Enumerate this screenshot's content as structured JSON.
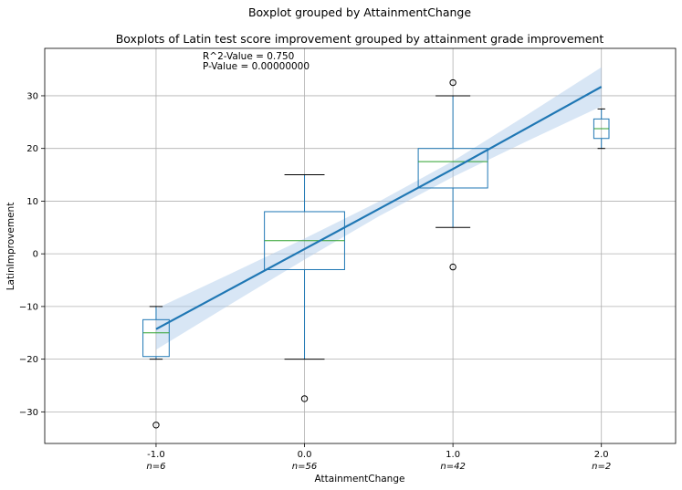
{
  "chart_data": {
    "type": "box",
    "suptitle": "Boxplot grouped by AttainmentChange",
    "title": "Boxplots of Latin test score improvement grouped by attainment grade improvement",
    "xlabel": "AttainmentChange",
    "ylabel": "LatinImprovement",
    "ylim": [
      -36,
      39
    ],
    "yticks": [
      -30,
      -20,
      -10,
      0,
      10,
      20,
      30
    ],
    "xlim": [
      -1.75,
      2.5
    ],
    "grid": true,
    "annotation": {
      "r2": "R^2-Value = 0.750",
      "p": "P-Value = 0.00000000"
    },
    "groups": [
      {
        "x": -1.0,
        "label": "-1.0",
        "n_label": "n=6",
        "q1": -19.5,
        "median": -15,
        "q3": -12.5,
        "whisker_low": -20,
        "whisker_high": -10,
        "outliers": [
          -32.5
        ]
      },
      {
        "x": 0.0,
        "label": "0.0",
        "n_label": "n=56",
        "q1": -3,
        "median": 2.5,
        "q3": 8,
        "whisker_low": -20,
        "whisker_high": 15,
        "outliers": [
          -27.5
        ]
      },
      {
        "x": 1.0,
        "label": "1.0",
        "n_label": "n=42",
        "q1": 12.5,
        "median": 17.5,
        "q3": 20,
        "whisker_low": 5,
        "whisker_high": 30,
        "outliers": [
          32.5,
          -2.5
        ]
      },
      {
        "x": 2.0,
        "label": "2.0",
        "n_label": "n=2",
        "q1": 21.9,
        "median": 23.75,
        "q3": 25.6,
        "whisker_low": 20,
        "whisker_high": 27.5,
        "outliers": []
      }
    ],
    "regression": {
      "x": [
        -1.0,
        -0.5,
        0.0,
        0.5,
        1.0,
        1.5,
        2.0
      ],
      "y": [
        -14.3,
        -6.7,
        0.9,
        8.5,
        16.1,
        23.9,
        31.7
      ],
      "ci_low": [
        -18.2,
        -9.6,
        -1.1,
        7.1,
        14.6,
        21.4,
        28.0
      ],
      "ci_high": [
        -10.4,
        -3.8,
        2.9,
        9.9,
        17.6,
        26.4,
        35.4
      ]
    },
    "colors": {
      "box": "#1f77b4",
      "median": "#2ca02c",
      "whisker": "#1f77b4",
      "cap": "#000000",
      "regression": "#1f77b4",
      "ci_band": "#a8c8e8",
      "grid": "#b0b0b0"
    }
  }
}
